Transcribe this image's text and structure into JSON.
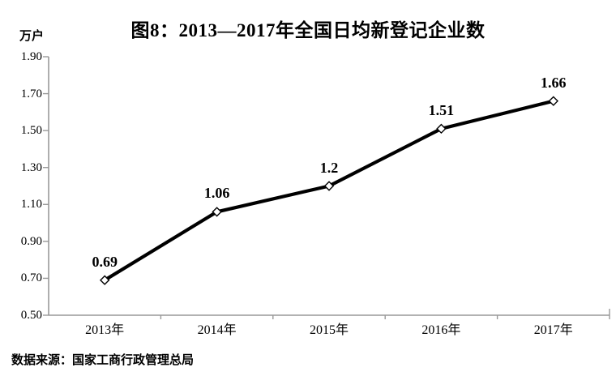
{
  "title": "图8：2013—2017年全国日均新登记企业数",
  "y_axis_unit_label": "万户",
  "source_note": "数据来源：国家工商行政管理总局",
  "chart_data": {
    "type": "line",
    "title": "图8：2013—2017年全国日均新登记企业数",
    "categories": [
      "2013年",
      "2014年",
      "2015年",
      "2016年",
      "2017年"
    ],
    "values": [
      0.69,
      1.06,
      1.2,
      1.51,
      1.66
    ],
    "point_labels": [
      "0.69",
      "1.06",
      "1.2",
      "1.51",
      "1.66"
    ],
    "xlabel": "",
    "ylabel": "万户",
    "ylim": [
      0.5,
      1.9
    ],
    "y_ticks": [
      0.5,
      0.7,
      0.9,
      1.1,
      1.3,
      1.5,
      1.7,
      1.9
    ],
    "y_tick_labels": [
      "0.50",
      "0.70",
      "0.90",
      "1.10",
      "1.30",
      "1.50",
      "1.70",
      "1.90"
    ],
    "grid": false,
    "legend": "none",
    "line_color": "#000000",
    "marker": "open-diamond",
    "marker_fill": "#ffffff",
    "axis_color": "#999999",
    "text_color": "#000000"
  }
}
